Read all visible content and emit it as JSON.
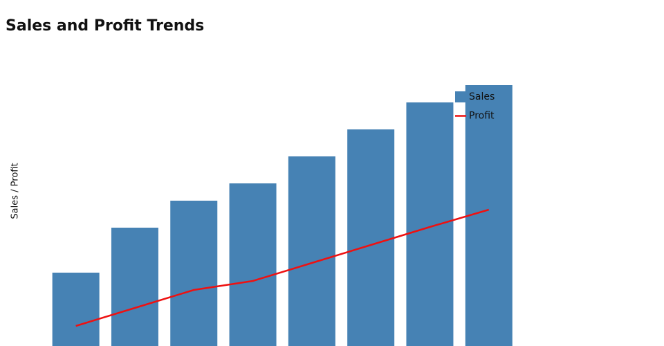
{
  "chart_data": {
    "type": "bar-line",
    "title": "Sales and Profit Trends",
    "y_label": "Sales / Profit",
    "categories": [
      null,
      null,
      null,
      null,
      null,
      null,
      null,
      null
    ],
    "series": [
      {
        "name": "Sales",
        "type": "bar",
        "color": "#4682b4",
        "values": [
          106,
          171,
          210,
          235,
          274,
          313,
          352,
          377
        ]
      },
      {
        "name": "Profit",
        "type": "line",
        "color": "#ee1111",
        "values": [
          29,
          55,
          81,
          94,
          120,
          146,
          172,
          197
        ]
      }
    ],
    "legend": "top-right"
  }
}
